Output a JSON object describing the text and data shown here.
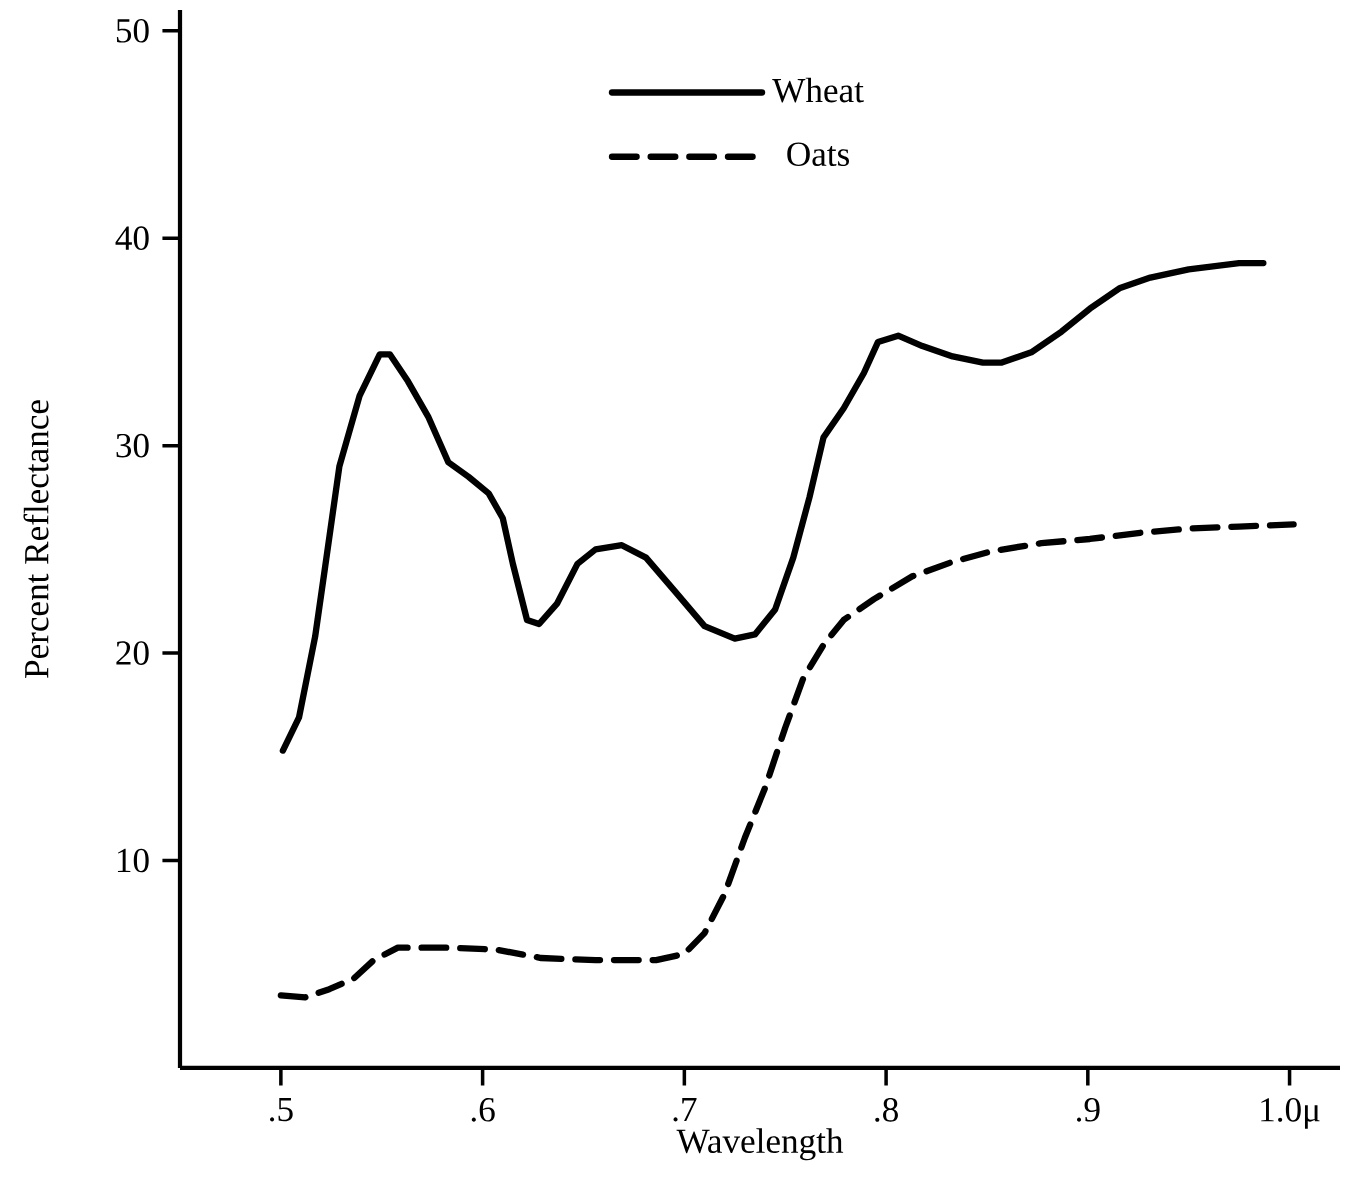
{
  "chart_data": {
    "type": "line",
    "xlabel": "Wavelength",
    "ylabel": "Percent Reflectance",
    "xlim": [
      0.45,
      1.025
    ],
    "ylim": [
      0,
      51
    ],
    "xticks": [
      {
        "value": 0.5,
        "label": ".5"
      },
      {
        "value": 0.6,
        "label": ".6"
      },
      {
        "value": 0.7,
        "label": ".7"
      },
      {
        "value": 0.8,
        "label": ".8"
      },
      {
        "value": 0.9,
        "label": ".9"
      },
      {
        "value": 1.0,
        "label": "1.0μ"
      }
    ],
    "yticks": [
      10,
      20,
      30,
      40,
      50
    ],
    "legend": "top",
    "grid": false,
    "marker": "none",
    "series": [
      {
        "name": "Wheat",
        "color": "#000000",
        "line_style": "solid",
        "x": [
          0.501,
          0.509,
          0.517,
          0.522,
          0.529,
          0.539,
          0.549,
          0.554,
          0.563,
          0.573,
          0.583,
          0.593,
          0.603,
          0.61,
          0.615,
          0.622,
          0.628,
          0.637,
          0.647,
          0.656,
          0.669,
          0.681,
          0.696,
          0.71,
          0.725,
          0.735,
          0.745,
          0.754,
          0.762,
          0.769,
          0.779,
          0.789,
          0.796,
          0.806,
          0.818,
          0.833,
          0.848,
          0.857,
          0.872,
          0.887,
          0.901,
          0.916,
          0.931,
          0.95,
          0.975,
          0.987
        ],
        "values": [
          15.3,
          16.9,
          20.8,
          24.2,
          29.0,
          32.4,
          34.4,
          34.4,
          33.1,
          31.4,
          29.2,
          28.5,
          27.7,
          26.5,
          24.3,
          21.6,
          21.4,
          22.4,
          24.3,
          25.0,
          25.2,
          24.6,
          22.9,
          21.3,
          20.7,
          20.9,
          22.1,
          24.6,
          27.5,
          30.4,
          31.8,
          33.5,
          35.0,
          35.3,
          34.8,
          34.3,
          34.0,
          34.0,
          34.5,
          35.5,
          36.6,
          37.6,
          38.1,
          38.5,
          38.8,
          38.8
        ]
      },
      {
        "name": "Oats",
        "color": "#000000",
        "line_style": "dashed",
        "x": [
          0.5,
          0.512,
          0.524,
          0.536,
          0.546,
          0.558,
          0.583,
          0.607,
          0.629,
          0.656,
          0.686,
          0.7,
          0.71,
          0.72,
          0.73,
          0.74,
          0.75,
          0.759,
          0.769,
          0.779,
          0.794,
          0.813,
          0.833,
          0.852,
          0.877,
          0.901,
          0.926,
          0.95,
          0.975,
          1.002
        ],
        "values": [
          3.5,
          3.4,
          3.8,
          4.3,
          5.2,
          5.8,
          5.8,
          5.7,
          5.3,
          5.2,
          5.2,
          5.5,
          6.5,
          8.4,
          11.1,
          13.5,
          16.4,
          18.8,
          20.4,
          21.6,
          22.6,
          23.7,
          24.4,
          24.9,
          25.3,
          25.5,
          25.8,
          26.0,
          26.1,
          26.2
        ]
      }
    ]
  }
}
